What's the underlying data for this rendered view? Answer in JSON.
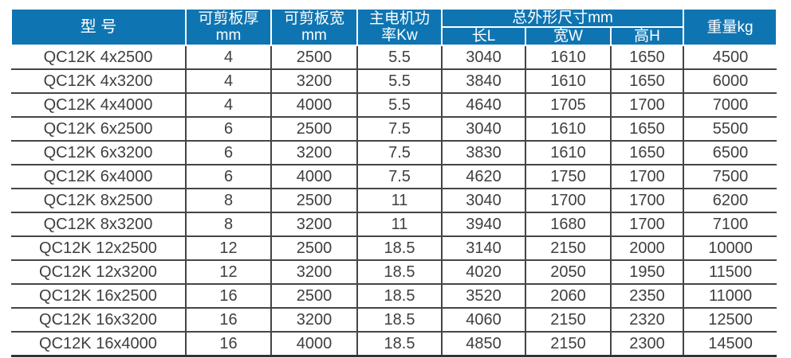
{
  "colors": {
    "header_background": "#0f75b2",
    "header_text": "#ffffff",
    "body_text": "#3f3f3f",
    "grid_line": "#454545"
  },
  "chart_data": {
    "type": "table",
    "header": {
      "model": "型 号",
      "cut_thickness": "可剪板厚",
      "cut_thickness_unit": "mm",
      "cut_width": "可剪板宽",
      "cut_width_unit": "mm",
      "motor_power_line1": "主电机功",
      "motor_power_line2": "率Kw",
      "overall_dimensions": "总外形尺寸mm",
      "length": "长L",
      "width": "宽W",
      "height": "高H",
      "weight": "重量kg"
    },
    "column_keys": [
      "model",
      "cut-thickness-mm",
      "cut-width-mm",
      "motor-power-kw",
      "length-mm",
      "width-mm",
      "height-mm",
      "weight-kg"
    ],
    "rows": [
      [
        "QC12K 4x2500",
        "4",
        "2500",
        "5.5",
        "3040",
        "1610",
        "1650",
        "4500"
      ],
      [
        "QC12K 4x3200",
        "4",
        "3200",
        "5.5",
        "3840",
        "1610",
        "1650",
        "6000"
      ],
      [
        "QC12K 4x4000",
        "4",
        "4000",
        "5.5",
        "4640",
        "1705",
        "1700",
        "7000"
      ],
      [
        "QC12K 6x2500",
        "6",
        "2500",
        "7.5",
        "3040",
        "1610",
        "1650",
        "5500"
      ],
      [
        "QC12K 6x3200",
        "6",
        "3200",
        "7.5",
        "3830",
        "1610",
        "1650",
        "6500"
      ],
      [
        "QC12K 6x4000",
        "6",
        "4000",
        "7.5",
        "4620",
        "1750",
        "1700",
        "7500"
      ],
      [
        "QC12K 8x2500",
        "8",
        "2500",
        "11",
        "3040",
        "1700",
        "1700",
        "6200"
      ],
      [
        "QC12K 8x3200",
        "8",
        "3200",
        "11",
        "3940",
        "1680",
        "1700",
        "7100"
      ],
      [
        "QC12K 12x2500",
        "12",
        "2500",
        "18.5",
        "3140",
        "2150",
        "2000",
        "10000"
      ],
      [
        "QC12K 12x3200",
        "12",
        "3200",
        "18.5",
        "4020",
        "2050",
        "1950",
        "11500"
      ],
      [
        "QC12K 16x2500",
        "16",
        "2500",
        "18.5",
        "3520",
        "2060",
        "2350",
        "11000"
      ],
      [
        "QC12K 16x3200",
        "16",
        "3200",
        "18.5",
        "4060",
        "2150",
        "2320",
        "12500"
      ],
      [
        "QC12K 16x4000",
        "16",
        "4000",
        "18.5",
        "4850",
        "2150",
        "2300",
        "14500"
      ]
    ]
  }
}
